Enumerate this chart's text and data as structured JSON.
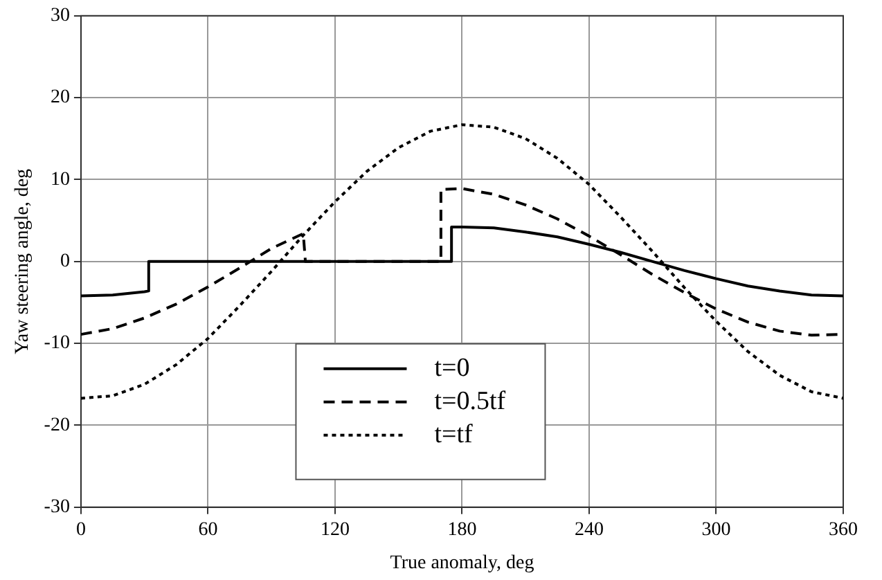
{
  "chart_data": {
    "type": "line",
    "xlabel": "True anomaly, deg",
    "ylabel": "Yaw steering angle, deg",
    "xlim": [
      0,
      360
    ],
    "xticks": [
      0,
      60,
      120,
      180,
      240,
      300,
      360
    ],
    "ylim": [
      -30,
      30
    ],
    "yticks": [
      -30,
      -20,
      -10,
      0,
      10,
      20,
      30
    ],
    "grid": true,
    "legend": "bottom",
    "marker": "none",
    "series": [
      {
        "name": "t=0",
        "color": "#000000",
        "line_style": "solid",
        "x": [
          0,
          15,
          30,
          32,
          32,
          175,
          175,
          180,
          195,
          210,
          225,
          240,
          255,
          270,
          285,
          300,
          315,
          330,
          345,
          360
        ],
        "values": [
          -4.2,
          -4.1,
          -3.7,
          -3.6,
          0,
          0,
          4.2,
          4.2,
          4.1,
          3.6,
          3.0,
          2.1,
          1.1,
          0,
          -1.1,
          -2.1,
          -3.0,
          -3.6,
          -4.1,
          -4.2
        ]
      },
      {
        "name": "t=0.5tf",
        "color": "#000000",
        "line_style": "dashed",
        "x": [
          0,
          15,
          30,
          45,
          60,
          75,
          90,
          105,
          106,
          170,
          170,
          180,
          195,
          210,
          225,
          240,
          255,
          270,
          285,
          300,
          315,
          330,
          345,
          360
        ],
        "values": [
          -8.9,
          -8.2,
          -6.9,
          -5.2,
          -3.1,
          -0.8,
          1.6,
          3.4,
          0,
          0,
          8.8,
          8.9,
          8.2,
          6.9,
          5.2,
          3.1,
          0.8,
          -1.6,
          -3.8,
          -5.8,
          -7.4,
          -8.5,
          -9.0,
          -8.9
        ]
      },
      {
        "name": "t=tf",
        "color": "#000000",
        "line_style": "dotted",
        "x": [
          0,
          15,
          30,
          45,
          60,
          75,
          90,
          105,
          120,
          135,
          150,
          165,
          180,
          195,
          210,
          225,
          240,
          255,
          270,
          285,
          300,
          315,
          330,
          345,
          360
        ],
        "values": [
          -16.7,
          -16.4,
          -15.0,
          -12.6,
          -9.4,
          -5.4,
          -1.2,
          3.2,
          7.3,
          11.0,
          13.9,
          15.9,
          16.7,
          16.4,
          15.0,
          12.6,
          9.4,
          5.4,
          1.2,
          -3.2,
          -7.3,
          -11.0,
          -13.9,
          -15.9,
          -16.7
        ]
      }
    ]
  }
}
